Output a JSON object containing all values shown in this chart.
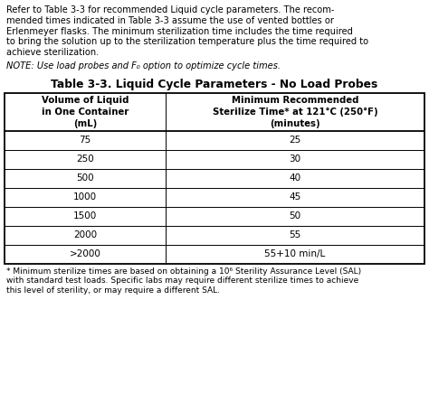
{
  "intro_lines": [
    "Refer to Table 3-3 for recommended Liquid cycle parameters. The recom-",
    "mended times indicated in Table 3-3 assume the use of vented bottles or",
    "Erlenmeyer flasks. The minimum sterilization time includes the time required",
    "to bring the solution up to the sterilization temperature plus the time required to",
    "achieve sterilization."
  ],
  "note_text": "NOTE: Use load probes and F₀ option to optimize cycle times.",
  "table_title": "Table 3-3. Liquid Cycle Parameters - No Load Probes",
  "col1_header_lines": [
    "Volume of Liquid",
    "in One Container",
    "(mL)"
  ],
  "col2_header_lines": [
    "Minimum Recommended",
    "Sterilize Time* at 121°C (250°F)",
    "(minutes)"
  ],
  "rows": [
    [
      "75",
      "25"
    ],
    [
      "250",
      "30"
    ],
    [
      "500",
      "40"
    ],
    [
      "1000",
      "45"
    ],
    [
      "1500",
      "50"
    ],
    [
      "2000",
      "55"
    ],
    [
      ">2000",
      "55+10 min/L"
    ]
  ],
  "footnote_lines": [
    "* Minimum sterilize times are based on obtaining a 10⁶ Sterility Assurance Level (SAL)",
    "with standard test loads. Specific labs may require different sterilize times to achieve",
    "this level of sterility, or may require a different SAL."
  ],
  "bg_color": "#ffffff",
  "border_color": "#000000",
  "text_color": "#000000",
  "intro_bold_segments": {
    "line0": [
      [
        9,
        18
      ]
    ],
    "line1": [
      [
        25,
        34
      ]
    ]
  },
  "intro_italic_line": 2,
  "intro_italic_range": [
    10,
    33
  ]
}
